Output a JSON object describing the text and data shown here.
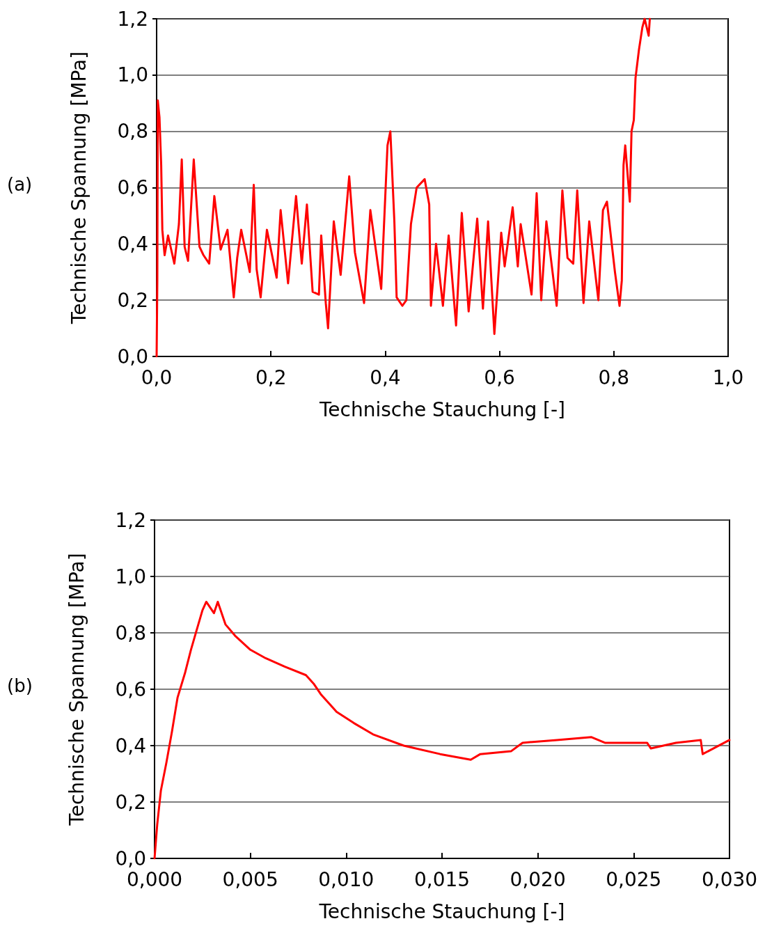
{
  "chart_data": [
    {
      "type": "line",
      "xlabel": "Technische Stauchung [-]",
      "ylabel": "Technische Spannung [MPa]",
      "annotations": [
        "(a)"
      ],
      "xlim": [
        0,
        1
      ],
      "xticks": [
        {
          "value": 0,
          "label": "0,0"
        },
        {
          "value": 0.2,
          "label": "0,2"
        },
        {
          "value": 0.4,
          "label": "0,4"
        },
        {
          "value": 0.6,
          "label": "0,6"
        },
        {
          "value": 0.8,
          "label": "0,8"
        },
        {
          "value": 1,
          "label": "1,0"
        }
      ],
      "ylim": [
        0,
        1.2
      ],
      "yticks": [
        {
          "value": 0,
          "label": "0,0"
        },
        {
          "value": 0.2,
          "label": "0,2"
        },
        {
          "value": 0.4,
          "label": "0,4"
        },
        {
          "value": 0.6,
          "label": "0,6"
        },
        {
          "value": 0.8,
          "label": "0,8"
        },
        {
          "value": 1,
          "label": "1,0"
        },
        {
          "value": 1.2,
          "label": "1,2"
        }
      ],
      "grid": "y",
      "marker": "none",
      "line_style": "solid",
      "series": [
        {
          "color": "#ff0000",
          "x": [
            0,
            0.0012,
            0.002,
            0.005,
            0.008,
            0.01,
            0.014,
            0.02,
            0.031,
            0.039,
            0.044,
            0.049,
            0.055,
            0.065,
            0.075,
            0.082,
            0.092,
            0.101,
            0.112,
            0.124,
            0.135,
            0.141,
            0.148,
            0.163,
            0.17,
            0.175,
            0.182,
            0.193,
            0.21,
            0.217,
            0.23,
            0.244,
            0.254,
            0.263,
            0.273,
            0.284,
            0.288,
            0.296,
            0.3,
            0.31,
            0.322,
            0.337,
            0.347,
            0.363,
            0.374,
            0.393,
            0.404,
            0.409,
            0.416,
            0.42,
            0.43,
            0.437,
            0.445,
            0.455,
            0.469,
            0.477,
            0.48,
            0.489,
            0.501,
            0.511,
            0.524,
            0.534,
            0.546,
            0.561,
            0.571,
            0.58,
            0.591,
            0.603,
            0.609,
            0.623,
            0.632,
            0.637,
            0.656,
            0.665,
            0.673,
            0.682,
            0.7,
            0.71,
            0.719,
            0.729,
            0.736,
            0.747,
            0.757,
            0.773,
            0.781,
            0.788,
            0.802,
            0.81,
            0.814,
            0.817,
            0.82,
            0.828,
            0.831,
            0.835,
            0.838,
            0.844,
            0.85,
            0.854,
            0.861,
            0.863
          ],
          "values": [
            0,
            0.27,
            0.91,
            0.85,
            0.68,
            0.45,
            0.36,
            0.43,
            0.33,
            0.47,
            0.7,
            0.39,
            0.34,
            0.7,
            0.39,
            0.36,
            0.33,
            0.57,
            0.38,
            0.45,
            0.21,
            0.35,
            0.45,
            0.3,
            0.61,
            0.31,
            0.21,
            0.45,
            0.28,
            0.52,
            0.26,
            0.57,
            0.33,
            0.54,
            0.23,
            0.22,
            0.43,
            0.19,
            0.1,
            0.48,
            0.29,
            0.64,
            0.37,
            0.19,
            0.52,
            0.24,
            0.75,
            0.8,
            0.48,
            0.21,
            0.18,
            0.2,
            0.47,
            0.6,
            0.63,
            0.54,
            0.18,
            0.4,
            0.18,
            0.43,
            0.11,
            0.51,
            0.16,
            0.49,
            0.17,
            0.48,
            0.08,
            0.44,
            0.32,
            0.53,
            0.32,
            0.47,
            0.22,
            0.58,
            0.2,
            0.48,
            0.18,
            0.59,
            0.35,
            0.33,
            0.59,
            0.19,
            0.48,
            0.2,
            0.52,
            0.55,
            0.3,
            0.18,
            0.27,
            0.68,
            0.75,
            0.55,
            0.8,
            0.84,
            0.99,
            1.09,
            1.17,
            1.2,
            1.14,
            1.2
          ]
        }
      ]
    },
    {
      "type": "line",
      "xlabel": "Technische Stauchung [-]",
      "ylabel": "Technische Spannung [MPa]",
      "annotations": [
        "(b)"
      ],
      "xlim": [
        0,
        0.03
      ],
      "xticks": [
        {
          "value": 0,
          "label": "0,000"
        },
        {
          "value": 0.005,
          "label": "0,005"
        },
        {
          "value": 0.01,
          "label": "0,010"
        },
        {
          "value": 0.015,
          "label": "0,015"
        },
        {
          "value": 0.02,
          "label": "0,020"
        },
        {
          "value": 0.025,
          "label": "0,025"
        },
        {
          "value": 0.03,
          "label": "0,030"
        }
      ],
      "ylim": [
        0,
        1.2
      ],
      "yticks": [
        {
          "value": 0,
          "label": "0,0"
        },
        {
          "value": 0.2,
          "label": "0,2"
        },
        {
          "value": 0.4,
          "label": "0,4"
        },
        {
          "value": 0.6,
          "label": "0,6"
        },
        {
          "value": 0.8,
          "label": "0,8"
        },
        {
          "value": 1,
          "label": "1,0"
        },
        {
          "value": 1.2,
          "label": "1,2"
        }
      ],
      "grid": "y",
      "marker": "none",
      "line_style": "solid",
      "series": [
        {
          "color": "#ff0000",
          "x": [
            0,
            0.00014,
            0.00033,
            0.00062,
            0.00091,
            0.0012,
            0.0016,
            0.0019,
            0.0022,
            0.0025,
            0.0027,
            0.0031,
            0.0033,
            0.0037,
            0.0042,
            0.005,
            0.0058,
            0.0068,
            0.0079,
            0.0083,
            0.0087,
            0.0095,
            0.0104,
            0.0114,
            0.013,
            0.0149,
            0.0165,
            0.017,
            0.0186,
            0.0192,
            0.021,
            0.0228,
            0.0235,
            0.0257,
            0.0259,
            0.0272,
            0.0285,
            0.0286,
            0.03
          ],
          "values": [
            0,
            0.12,
            0.24,
            0.34,
            0.45,
            0.57,
            0.66,
            0.74,
            0.81,
            0.88,
            0.91,
            0.87,
            0.91,
            0.83,
            0.79,
            0.74,
            0.71,
            0.68,
            0.65,
            0.62,
            0.58,
            0.52,
            0.48,
            0.44,
            0.4,
            0.37,
            0.35,
            0.37,
            0.38,
            0.41,
            0.42,
            0.43,
            0.41,
            0.41,
            0.39,
            0.41,
            0.42,
            0.37,
            0.42
          ]
        }
      ]
    }
  ]
}
